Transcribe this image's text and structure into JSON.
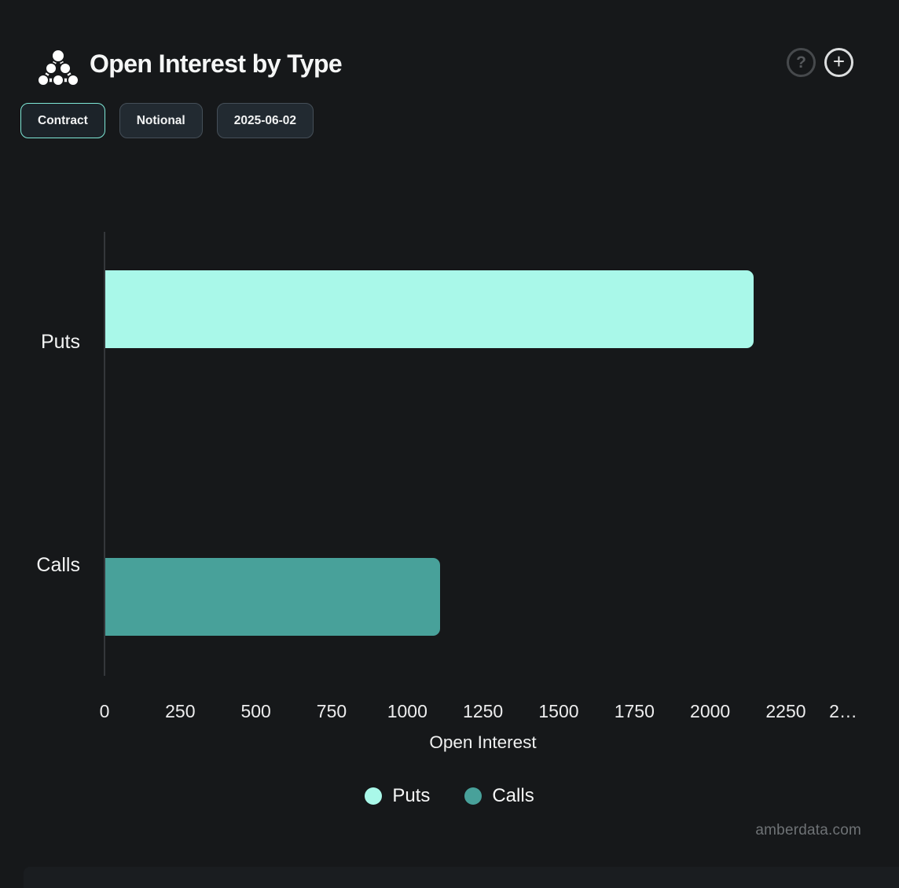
{
  "header": {
    "title": "Open Interest by Type",
    "logo_name": "amberdata-logo",
    "help_label": "?",
    "add_label": "+"
  },
  "toolbar": {
    "contract_label": "Contract",
    "notional_label": "Notional",
    "date_label": "2025-06-02"
  },
  "chart_data": {
    "type": "bar",
    "orientation": "horizontal",
    "title": "Open Interest by Type",
    "categories": [
      "Puts",
      "Calls"
    ],
    "series": [
      {
        "name": "Puts",
        "color": "#a9f8e9",
        "values": [
          2141,
          0
        ]
      },
      {
        "name": "Calls",
        "color": "#48a19a",
        "values": [
          0,
          1106
        ]
      }
    ],
    "xlabel": "Open Interest",
    "ylabel": "",
    "xlim": [
      0,
      2500
    ],
    "tick_step": 250,
    "xticks": [
      "0",
      "250",
      "500",
      "750",
      "1000",
      "1250",
      "1500",
      "1750",
      "2000",
      "2250",
      "2…"
    ],
    "grid": false,
    "legend": [
      "Puts",
      "Calls"
    ],
    "legend_position": "bottom"
  },
  "watermark": "amberdata.com",
  "colors": {
    "background": "#16181a",
    "accent_border": "#7ee8d6",
    "puts": "#a9f8e9",
    "calls": "#48a19a",
    "axis_line": "#34373b"
  }
}
